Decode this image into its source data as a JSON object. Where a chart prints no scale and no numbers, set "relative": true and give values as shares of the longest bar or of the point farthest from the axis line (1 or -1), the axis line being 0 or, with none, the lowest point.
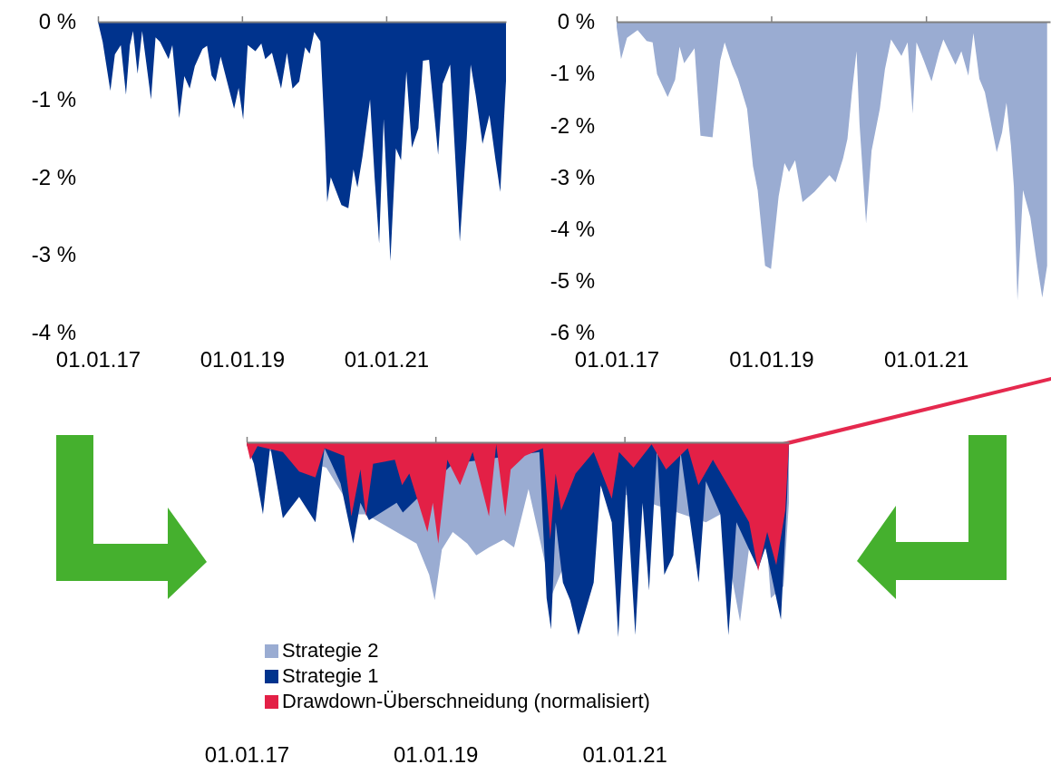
{
  "chart_data": [
    {
      "type": "area",
      "xlim": [
        "2017-01-01",
        "2022-08-31"
      ],
      "ylim": [
        -4,
        0
      ],
      "xticks": [
        {
          "value": "2017-01-01",
          "label": "01.01.17"
        },
        {
          "value": "2019-01-01",
          "label": "01.01.19"
        },
        {
          "value": "2021-01-01",
          "label": "01.01.21"
        }
      ],
      "yticks": [
        {
          "value": 0,
          "label": "0 %"
        },
        {
          "value": -1,
          "label": "-1 %"
        },
        {
          "value": -2,
          "label": "-2 %"
        },
        {
          "value": -3,
          "label": "-3 %"
        },
        {
          "value": -4,
          "label": "-4 %"
        }
      ],
      "series": [
        {
          "color": "#00338d",
          "x": [
            "2017-01-01",
            "2017-01-25",
            "2017-03-05",
            "2017-03-28",
            "2017-04-27",
            "2017-05-23",
            "2017-06-12",
            "2017-06-28",
            "2017-07-21",
            "2017-08-13",
            "2017-09-27",
            "2017-10-20",
            "2017-11-12",
            "2017-12-25",
            "2018-01-13",
            "2018-02-17",
            "2018-03-15",
            "2018-04-11",
            "2018-05-07",
            "2018-06-15",
            "2018-07-08",
            "2018-07-31",
            "2018-08-20",
            "2018-09-15",
            "2018-11-22",
            "2018-12-15",
            "2019-01-07",
            "2019-01-30",
            "2019-03-10",
            "2019-04-09",
            "2019-04-29",
            "2019-06-02",
            "2019-07-18",
            "2019-08-17",
            "2019-09-14",
            "2019-10-18",
            "2019-11-17",
            "2019-12-10",
            "2020-01-02",
            "2020-02-02",
            "2020-02-25",
            "2020-03-08",
            "2020-03-26",
            "2020-05-19",
            "2020-06-23",
            "2020-07-19",
            "2020-08-08",
            "2020-09-03",
            "2020-10-11",
            "2020-11-03",
            "2020-11-26",
            "2020-12-19",
            "2021-01-22",
            "2021-02-19",
            "2021-03-17",
            "2021-04-13",
            "2021-05-11",
            "2021-06-13",
            "2021-07-06",
            "2021-08-06",
            "2021-09-21",
            "2021-10-14",
            "2021-11-21",
            "2022-01-09",
            "2022-02-13",
            "2022-03-05",
            "2022-03-31",
            "2022-05-04",
            "2022-06-08",
            "2022-07-09",
            "2022-08-02",
            "2022-08-31"
          ],
          "values": [
            0,
            -0.26,
            -0.89,
            -0.42,
            -0.3,
            -0.94,
            -0.3,
            -0.12,
            -0.67,
            -0.12,
            -1.0,
            -0.2,
            -0.26,
            -0.48,
            -0.3,
            -1.24,
            -0.7,
            -0.86,
            -0.57,
            -0.35,
            -0.31,
            -0.69,
            -0.77,
            -0.45,
            -1.12,
            -0.85,
            -1.26,
            -0.3,
            -0.38,
            -0.28,
            -0.48,
            -0.4,
            -0.86,
            -0.4,
            -0.86,
            -0.77,
            -0.33,
            -0.41,
            -0.13,
            -0.25,
            -1.5,
            -2.32,
            -2.0,
            -2.36,
            -2.4,
            -1.9,
            -2.13,
            -1.73,
            -1.0,
            -2.0,
            -2.85,
            -1.25,
            -3.08,
            -1.63,
            -1.78,
            -0.64,
            -1.62,
            -1.37,
            -0.5,
            -0.49,
            -1.71,
            -0.8,
            -0.55,
            -2.83,
            -1.5,
            -0.55,
            -0.95,
            -1.57,
            -1.2,
            -1.78,
            -2.19,
            -0.76
          ]
        }
      ]
    },
    {
      "type": "area",
      "xlim": [
        "2017-01-01",
        "2022-08-10"
      ],
      "ylim": [
        -6,
        0
      ],
      "xticks": [
        {
          "value": "2017-01-01",
          "label": "01.01.17"
        },
        {
          "value": "2019-01-01",
          "label": "01.01.19"
        },
        {
          "value": "2021-01-01",
          "label": "01.01.21"
        }
      ],
      "yticks": [
        {
          "value": 0,
          "label": "0 %"
        },
        {
          "value": -1,
          "label": "-1 %"
        },
        {
          "value": -2,
          "label": "-2 %"
        },
        {
          "value": -3,
          "label": "-3 %"
        },
        {
          "value": -4,
          "label": "-4 %"
        },
        {
          "value": -5,
          "label": "-5 %"
        },
        {
          "value": -6,
          "label": "-6 %"
        }
      ],
      "series": [
        {
          "color": "#9aacd2",
          "x": [
            "2017-01-01",
            "2017-01-22",
            "2017-02-19",
            "2017-04-10",
            "2017-05-23",
            "2017-06-20",
            "2017-07-11",
            "2017-08-09",
            "2017-08-30",
            "2017-10-04",
            "2017-10-25",
            "2017-11-16",
            "2018-01-04",
            "2018-02-01",
            "2018-03-30",
            "2018-05-05",
            "2018-05-26",
            "2018-06-30",
            "2018-07-28",
            "2018-09-09",
            "2018-10-07",
            "2018-10-29",
            "2018-12-03",
            "2018-12-31",
            "2019-02-05",
            "2019-03-05",
            "2019-03-26",
            "2019-04-24",
            "2019-05-29",
            "2019-07-25",
            "2019-10-03",
            "2019-11-01",
            "2019-12-06",
            "2019-12-27",
            "2020-01-18",
            "2020-02-08",
            "2020-02-22",
            "2020-03-24",
            "2020-04-19",
            "2020-05-28",
            "2020-06-21",
            "2020-07-20",
            "2020-09-07",
            "2020-10-06",
            "2020-10-30",
            "2020-11-17",
            "2020-12-22",
            "2021-01-27",
            "2021-03-03",
            "2021-03-24",
            "2021-05-20",
            "2021-06-17",
            "2021-07-20",
            "2021-08-13",
            "2021-09-10",
            "2021-10-06",
            "2021-12-01",
            "2021-12-26",
            "2022-01-16",
            "2022-02-06",
            "2022-02-20",
            "2022-03-09",
            "2022-04-04",
            "2022-05-09",
            "2022-06-06",
            "2022-07-04",
            "2022-07-27"
          ],
          "values": [
            -0.1,
            -0.72,
            -0.31,
            -0.16,
            -0.37,
            -0.4,
            -1.01,
            -1.27,
            -1.45,
            -1.12,
            -0.48,
            -0.8,
            -0.51,
            -2.2,
            -2.23,
            -0.75,
            -0.4,
            -0.83,
            -1.1,
            -1.68,
            -2.79,
            -3.25,
            -4.71,
            -4.77,
            -3.37,
            -2.73,
            -2.9,
            -2.67,
            -3.48,
            -3.28,
            -2.96,
            -3.1,
            -2.64,
            -2.26,
            -1.33,
            -0.57,
            -1.97,
            -3.89,
            -2.49,
            -1.68,
            -0.92,
            -0.34,
            -0.66,
            -0.4,
            -1.77,
            -0.4,
            -0.75,
            -1.15,
            -0.6,
            -0.34,
            -0.83,
            -0.57,
            -1.04,
            -0.22,
            -1.1,
            -1.36,
            -2.52,
            -2.14,
            -1.56,
            -2.38,
            -3.19,
            -5.38,
            -3.25,
            -3.78,
            -4.59,
            -5.32,
            -4.71
          ]
        }
      ]
    },
    {
      "type": "area",
      "relative": true,
      "tick_labels": "x",
      "legend": "bottom",
      "xlim": [
        "2017-01-01",
        "2022-09-29"
      ],
      "xticks": [
        {
          "value": "2017-01-01",
          "label": "01.01.17"
        },
        {
          "value": "2019-01-01",
          "label": "01.01.19"
        },
        {
          "value": "2021-01-01",
          "label": "01.01.21"
        }
      ],
      "series": [
        {
          "name": "Strategie 2",
          "color": "#9aacd2",
          "x": [
            "2017-01-01",
            "2017-02-12",
            "2017-05-07",
            "2017-07-16",
            "2017-09-10",
            "2017-11-05",
            "2018-01-13",
            "2018-02-24",
            "2018-04-07",
            "2018-06-02",
            "2018-08-25",
            "2018-10-20",
            "2018-12-08",
            "2018-12-29",
            "2019-01-26",
            "2019-03-09",
            "2019-05-04",
            "2019-06-08",
            "2019-07-27",
            "2019-09-21",
            "2019-11-01",
            "2019-12-27",
            "2020-02-21",
            "2020-03-27",
            "2020-05-01",
            "2020-07-24",
            "2020-09-18",
            "2020-12-11",
            "2021-03-05",
            "2021-06-25",
            "2021-09-17",
            "2021-11-12",
            "2022-01-07",
            "2022-03-24",
            "2022-04-28",
            "2022-07-07",
            "2022-07-21",
            "2022-08-18",
            "2022-09-08",
            "2022-09-29"
          ],
          "values": [
            -0.01,
            null,
            null,
            null,
            null,
            -0.13,
            null,
            -0.37,
            -0.37,
            null,
            null,
            -0.52,
            -0.68,
            -0.81,
            -0.55,
            -0.46,
            -0.52,
            -0.58,
            -0.54,
            -0.5,
            -0.54,
            -0.24,
            null,
            -0.78,
            null,
            null,
            -0.22,
            null,
            null,
            null,
            null,
            -0.41,
            -0.37,
            -0.92,
            -0.54,
            -0.55,
            -0.8,
            null,
            -0.74,
            -0.31
          ]
        },
        {
          "name": "Strategie 1",
          "color": "#00338d",
          "x": [
            "2017-01-01",
            "2017-01-29",
            "2017-03-05",
            "2017-04-02",
            "2017-05-21",
            "2017-06-18",
            "2017-07-23",
            "2017-09-24",
            "2017-10-29",
            "2017-12-30",
            "2018-02-17",
            "2018-03-17",
            "2018-04-19",
            "2018-05-19",
            "2018-08-04",
            "2018-08-28",
            "2018-09-22",
            "2019-03-09",
            "2020-02-07",
            "2020-03-06",
            "2020-03-23",
            "2020-04-10",
            "2020-05-08",
            "2020-06-05",
            "2020-07-07",
            "2020-07-31",
            "2020-09-04",
            "2020-10-01",
            "2020-11-13",
            "2020-12-08",
            "2021-01-08",
            "2021-02-12",
            "2021-03-12",
            "2021-04-06",
            "2021-05-07",
            "2021-06-04",
            "2021-07-09",
            "2021-08-06",
            "2021-09-24",
            "2021-10-15",
            "2021-11-12",
            "2022-01-07",
            "2022-02-07",
            "2022-03-10",
            "2022-04-14",
            "2022-06-02",
            "2022-06-30",
            "2022-07-28",
            "2022-08-29",
            "2022-09-22",
            "2022-09-29"
          ],
          "values": [
            -0.01,
            -0.11,
            -0.37,
            -0.02,
            -0.39,
            null,
            -0.28,
            -0.41,
            -0.03,
            -0.21,
            -0.52,
            -0.31,
            -0.4,
            null,
            -0.31,
            -0.36,
            null,
            -0.11,
            -0.05,
            -0.8,
            -0.96,
            -0.41,
            -0.72,
            -0.81,
            -0.99,
            null,
            -0.72,
            -0.22,
            -0.41,
            -1.0,
            -0.22,
            -0.99,
            -0.31,
            -0.76,
            -0.03,
            -0.68,
            -0.58,
            -0.05,
            null,
            -0.72,
            -0.2,
            -0.37,
            -0.99,
            -0.41,
            null,
            -0.65,
            -0.54,
            null,
            -0.91,
            -0.28,
            -0.01
          ]
        },
        {
          "name": "Drawdown-Überschneidung (normalisiert)",
          "color": "#e32046",
          "x": [
            "2017-01-01",
            "2017-01-15",
            "2017-02-12",
            "2017-05-21",
            "2017-07-23",
            "2017-09-24",
            "2017-10-29",
            "2018-01-13",
            "2018-02-10",
            "2018-03-17",
            "2018-04-07",
            "2018-05-05",
            "2018-07-28",
            "2018-08-25",
            "2018-09-22",
            "2018-12-01",
            "2018-12-22",
            "2019-01-12",
            "2019-02-16",
            "2019-04-06",
            "2019-05-25",
            "2019-07-27",
            "2019-08-24",
            "2019-09-28",
            "2019-10-19",
            "2019-12-13",
            "2020-02-21",
            "2020-03-20",
            "2020-04-10",
            "2020-05-01",
            "2020-06-26",
            "2020-09-04",
            "2020-11-13",
            "2020-12-11",
            "2021-02-05",
            "2021-04-16",
            "2021-06-11",
            "2021-09-03",
            "2021-10-14",
            "2021-12-09",
            "2022-03-03",
            "2022-04-28",
            "2022-06-02",
            "2022-07-07",
            "2022-08-11",
            "2022-09-15",
            "2022-09-29"
          ],
          "values": [
            -0.01,
            -0.09,
            -0.02,
            -0.05,
            -0.15,
            -0.18,
            -0.03,
            -0.07,
            -0.38,
            -0.14,
            -0.38,
            -0.11,
            -0.09,
            -0.22,
            -0.16,
            -0.46,
            -0.31,
            -0.52,
            -0.09,
            -0.22,
            -0.05,
            -0.38,
            -0.01,
            -0.38,
            -0.14,
            -0.07,
            -0.03,
            -0.5,
            -0.16,
            -0.35,
            -0.16,
            -0.05,
            -0.29,
            -0.05,
            -0.13,
            -0.01,
            -0.14,
            -0.03,
            -0.22,
            -0.09,
            -0.28,
            -0.41,
            -0.66,
            -0.46,
            -0.63,
            -0.35,
            -0.01
          ]
        }
      ]
    }
  ]
}
